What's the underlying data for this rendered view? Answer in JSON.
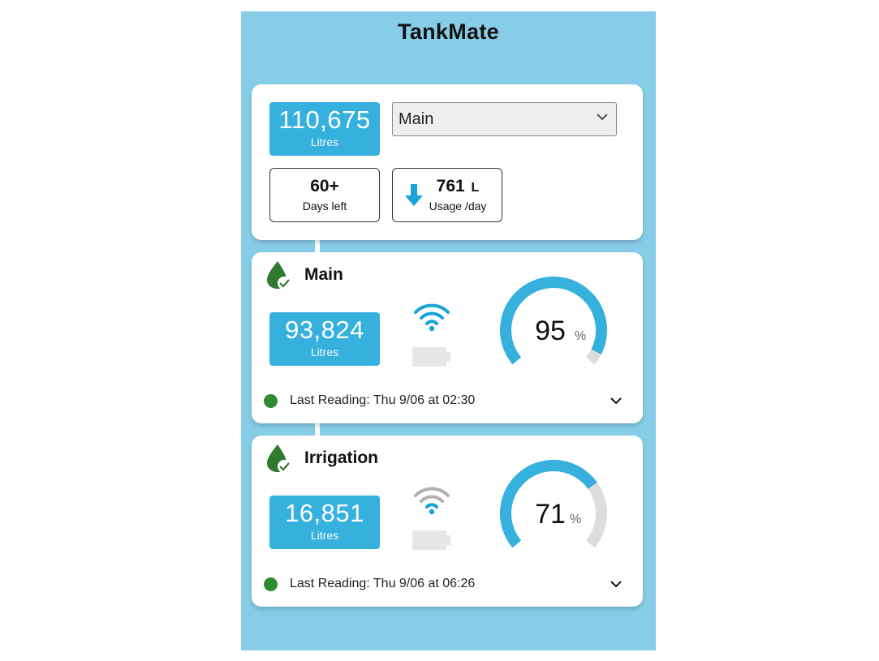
{
  "app": {
    "title": "TankMate"
  },
  "summary": {
    "total_litres": "110,675",
    "litres_unit": "Litres",
    "tank_select": {
      "selected": "Main"
    },
    "days_left": {
      "value": "60+",
      "label": "Days left"
    },
    "usage": {
      "value": "761",
      "unit": "L",
      "label": "Usage /day",
      "icon": "arrow-down-icon"
    }
  },
  "tanks": [
    {
      "name": "Main",
      "litres": "93,824",
      "litres_unit": "Litres",
      "percent": 95,
      "percent_text": "95",
      "percent_unit": "%",
      "last_reading": "Last Reading: Thu 9/06 at 02:30",
      "wifi_strength": 3,
      "status": "online"
    },
    {
      "name": "Irrigation",
      "litres": "16,851",
      "litres_unit": "Litres",
      "percent": 71,
      "percent_text": "71",
      "percent_unit": "%",
      "last_reading": "Last Reading: Thu 9/06 at 06:26",
      "wifi_strength": 1,
      "status": "online"
    }
  ],
  "colors": {
    "background": "#87cde8",
    "accent": "#36b0dc",
    "gauge_track": "#dddddd",
    "status_ok": "#2e8b2e",
    "leaf": "#2f7a2f",
    "wifi_inactive": "#b0b0b0",
    "battery": "#e6e6e6"
  }
}
